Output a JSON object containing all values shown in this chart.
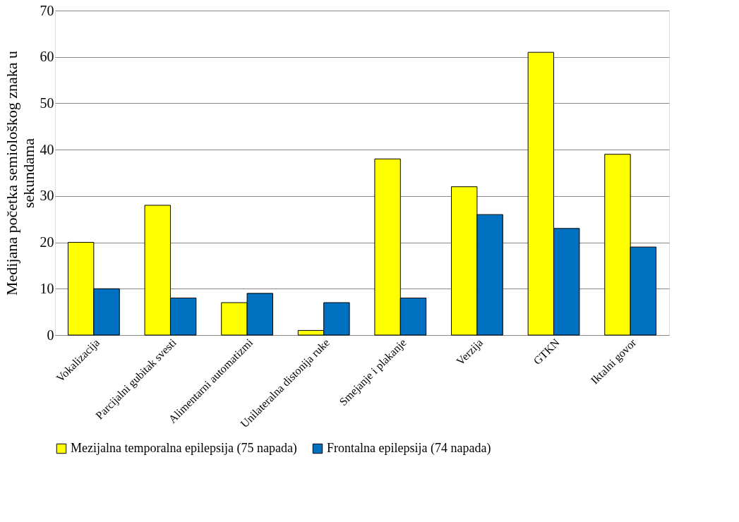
{
  "chart_data": {
    "type": "bar",
    "ylabel": "Medijana početka semiološkog znaka u sekundama",
    "categories": [
      "Vokalizacija",
      "Parcijalni gubitak svesti",
      "Alimentarni automatizmi",
      "Unilateralna distonija ruke",
      "Smejanje i plakanje",
      "Verzija",
      "GTKN",
      "Iktalni govor"
    ],
    "series": [
      {
        "name": "Mezijalna temporalna epilepsija (75 napada)",
        "color": "#ffff00",
        "values": [
          20,
          28,
          7,
          1,
          38,
          32,
          61,
          39
        ]
      },
      {
        "name": "Frontalna epilepsija (74 napada)",
        "color": "#0070c0",
        "values": [
          10,
          8,
          9,
          7,
          8,
          26,
          23,
          19
        ]
      }
    ],
    "ylim": [
      0,
      70
    ],
    "yticks": [
      0,
      10,
      20,
      30,
      40,
      50,
      60,
      70
    ],
    "grid": "y",
    "legend": "bottom"
  }
}
